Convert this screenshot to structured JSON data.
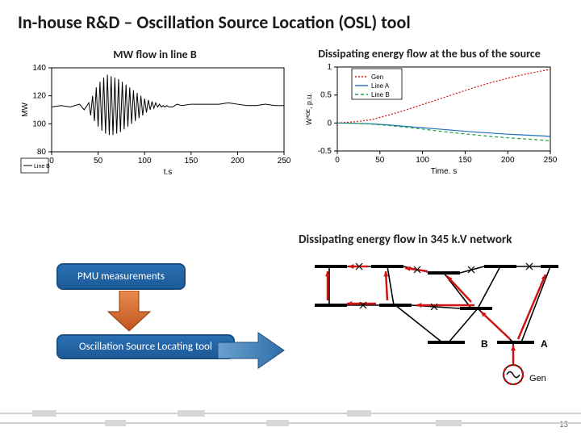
{
  "title": "In-house R&D – Oscillation Source Location (OSL) tool",
  "chart_left": {
    "caption": "MW flow in line B",
    "type": "line",
    "series_label": "Line B",
    "series_color": "#000000",
    "xlabel": "t,s",
    "ylabel": "MW",
    "xlim": [
      0,
      250
    ],
    "ylim": [
      80,
      140
    ],
    "xticks": [
      0,
      50,
      100,
      150,
      200,
      250
    ],
    "yticks": [
      80,
      100,
      120,
      140
    ],
    "axis_fontsize": 10,
    "background_color": "#ffffff",
    "line_width": 1,
    "data_x": [
      0,
      10,
      20,
      30,
      35,
      40,
      42,
      44,
      46,
      48,
      50,
      52,
      54,
      56,
      58,
      60,
      62,
      64,
      66,
      68,
      70,
      72,
      74,
      76,
      78,
      80,
      82,
      84,
      86,
      88,
      90,
      92,
      94,
      96,
      98,
      100,
      102,
      104,
      106,
      108,
      110,
      112,
      114,
      116,
      118,
      120,
      122,
      124,
      126,
      128,
      130,
      135,
      140,
      150,
      160,
      170,
      180,
      190,
      200,
      210,
      220,
      230,
      240,
      250
    ],
    "data_y": [
      112,
      113,
      112,
      114,
      110,
      115,
      106,
      120,
      102,
      126,
      98,
      130,
      95,
      133,
      93,
      135,
      92,
      134,
      92,
      133,
      93,
      132,
      94,
      130,
      96,
      128,
      98,
      126,
      100,
      124,
      102,
      122,
      104,
      120,
      106,
      118,
      108,
      117,
      110,
      116,
      111,
      115,
      112,
      114,
      112,
      113,
      112,
      113,
      112,
      112,
      112,
      114,
      113,
      114,
      114,
      114,
      114,
      115,
      114,
      113,
      113,
      114,
      113,
      113
    ]
  },
  "chart_right": {
    "caption": "Dissipating energy flow at the bus of the source",
    "type": "line",
    "xlabel": "Time, s",
    "ylabel": "W*ᴰᴱ, p.u.",
    "xlim": [
      0,
      250
    ],
    "ylim": [
      -0.5,
      1
    ],
    "xticks": [
      0,
      50,
      100,
      150,
      200,
      250
    ],
    "yticks": [
      -0.5,
      0,
      0.5,
      1
    ],
    "axis_fontsize": 10,
    "background_color": "#ffffff",
    "legend_pos": "top-right-inset",
    "series": [
      {
        "name": "Gen",
        "color": "#d01212",
        "dash": "2,2",
        "x": [
          0,
          20,
          40,
          60,
          80,
          100,
          120,
          140,
          160,
          180,
          200,
          220,
          240,
          250
        ],
        "y": [
          0,
          0.02,
          0.06,
          0.14,
          0.23,
          0.33,
          0.43,
          0.53,
          0.63,
          0.72,
          0.8,
          0.87,
          0.93,
          0.96
        ]
      },
      {
        "name": "Line A",
        "color": "#1f6fbf",
        "dash": "",
        "x": [
          0,
          20,
          40,
          60,
          80,
          100,
          120,
          140,
          160,
          180,
          200,
          220,
          240,
          250
        ],
        "y": [
          0,
          -0.005,
          -0.015,
          -0.035,
          -0.06,
          -0.085,
          -0.11,
          -0.135,
          -0.16,
          -0.18,
          -0.2,
          -0.215,
          -0.23,
          -0.24
        ]
      },
      {
        "name": "Line B",
        "color": "#1fa040",
        "dash": "4,3",
        "x": [
          0,
          20,
          40,
          60,
          80,
          100,
          120,
          140,
          160,
          180,
          200,
          220,
          240,
          250
        ],
        "y": [
          0,
          -0.007,
          -0.02,
          -0.045,
          -0.075,
          -0.11,
          -0.145,
          -0.18,
          -0.21,
          -0.24,
          -0.265,
          -0.285,
          -0.305,
          -0.32
        ]
      }
    ]
  },
  "network": {
    "caption": "Dissipating energy flow in 345 k.V network",
    "node_color": "#000000",
    "line_color": "#000000",
    "gen_color": "#d01212",
    "flow_arrow_color": "#d01212",
    "bus_label_A": "A",
    "bus_label_B": "B",
    "gen_label": "Gen"
  },
  "flow": {
    "pmu": "PMU measurements",
    "osl": "Oscillation Source Locating tool",
    "block_bg": "#2a6fb0",
    "block_border": "#194e80",
    "arrow_down_color": "#d0602a",
    "arrow_right_color": "#2f6fa8"
  },
  "page_number": "13"
}
